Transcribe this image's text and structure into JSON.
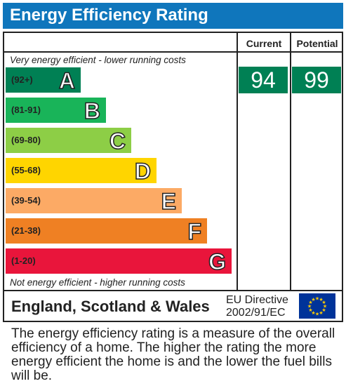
{
  "title": "Energy Efficiency Rating",
  "columns": {
    "current": "Current",
    "potential": "Potential"
  },
  "top_caption": "Very energy efficient - lower running costs",
  "bottom_caption": "Not energy efficient - higher running costs",
  "footer": {
    "region": "England, Scotland & Wales",
    "directive_line1": "EU Directive",
    "directive_line2": "2002/91/EC"
  },
  "description": "The energy efficiency rating is a measure of the overall efficiency of a home. The higher the rating the more energy efficient the home is and the lower the fuel bills will be.",
  "chart_data": {
    "type": "bar",
    "title": "Energy Efficiency Rating",
    "bands": [
      {
        "range": "(92+)",
        "letter": "A",
        "color": "#008054"
      },
      {
        "range": "(81-91)",
        "letter": "B",
        "color": "#19b459"
      },
      {
        "range": "(69-80)",
        "letter": "C",
        "color": "#8dce46"
      },
      {
        "range": "(55-68)",
        "letter": "D",
        "color": "#ffd500"
      },
      {
        "range": "(39-54)",
        "letter": "E",
        "color": "#fcaa65"
      },
      {
        "range": "(21-38)",
        "letter": "F",
        "color": "#ef8023"
      },
      {
        "range": "(1-20)",
        "letter": "G",
        "color": "#e9153b"
      }
    ],
    "current": 94,
    "potential": 99,
    "rating_band": "A"
  }
}
